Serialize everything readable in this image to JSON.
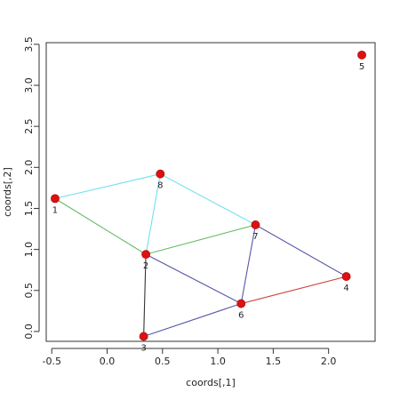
{
  "chart_data": {
    "type": "scatter",
    "xlabel": "coords[,1]",
    "ylabel": "coords[,2]",
    "xlim": [
      -0.55,
      2.42
    ],
    "ylim": [
      -0.12,
      3.52
    ],
    "x_ticks": [
      -0.5,
      0.0,
      0.5,
      1.0,
      1.5,
      2.0
    ],
    "x_tick_labels": [
      "-0.5",
      "0.0",
      "0.5",
      "1.0",
      "1.5",
      "2.0"
    ],
    "y_ticks": [
      0.0,
      0.5,
      1.0,
      1.5,
      2.0,
      2.5,
      3.0,
      3.5
    ],
    "y_tick_labels": [
      "0.0",
      "0.5",
      "1.0",
      "1.5",
      "2.0",
      "2.5",
      "3.0",
      "3.5"
    ],
    "grid": false,
    "point_color": "#dd1111",
    "nodes": [
      {
        "id": "1",
        "x": -0.47,
        "y": 1.62
      },
      {
        "id": "2",
        "x": 0.35,
        "y": 0.94
      },
      {
        "id": "3",
        "x": 0.33,
        "y": -0.06
      },
      {
        "id": "4",
        "x": 2.16,
        "y": 0.67
      },
      {
        "id": "5",
        "x": 2.3,
        "y": 3.37
      },
      {
        "id": "6",
        "x": 1.21,
        "y": 0.34
      },
      {
        "id": "7",
        "x": 1.34,
        "y": 1.3
      },
      {
        "id": "8",
        "x": 0.48,
        "y": 1.92
      }
    ],
    "edges": [
      {
        "from": "1",
        "to": "8",
        "color": "#70e0ee"
      },
      {
        "from": "8",
        "to": "7",
        "color": "#70e0ee"
      },
      {
        "from": "8",
        "to": "2",
        "color": "#70e0ee"
      },
      {
        "from": "1",
        "to": "2",
        "color": "#66bb66"
      },
      {
        "from": "2",
        "to": "7",
        "color": "#66bb66"
      },
      {
        "from": "2",
        "to": "6",
        "color": "#5555aa"
      },
      {
        "from": "7",
        "to": "6",
        "color": "#5555aa"
      },
      {
        "from": "7",
        "to": "4",
        "color": "#5555aa"
      },
      {
        "from": "3",
        "to": "6",
        "color": "#5555aa"
      },
      {
        "from": "2",
        "to": "3",
        "color": "#333333"
      },
      {
        "from": "6",
        "to": "4",
        "color": "#cc4444"
      }
    ]
  }
}
